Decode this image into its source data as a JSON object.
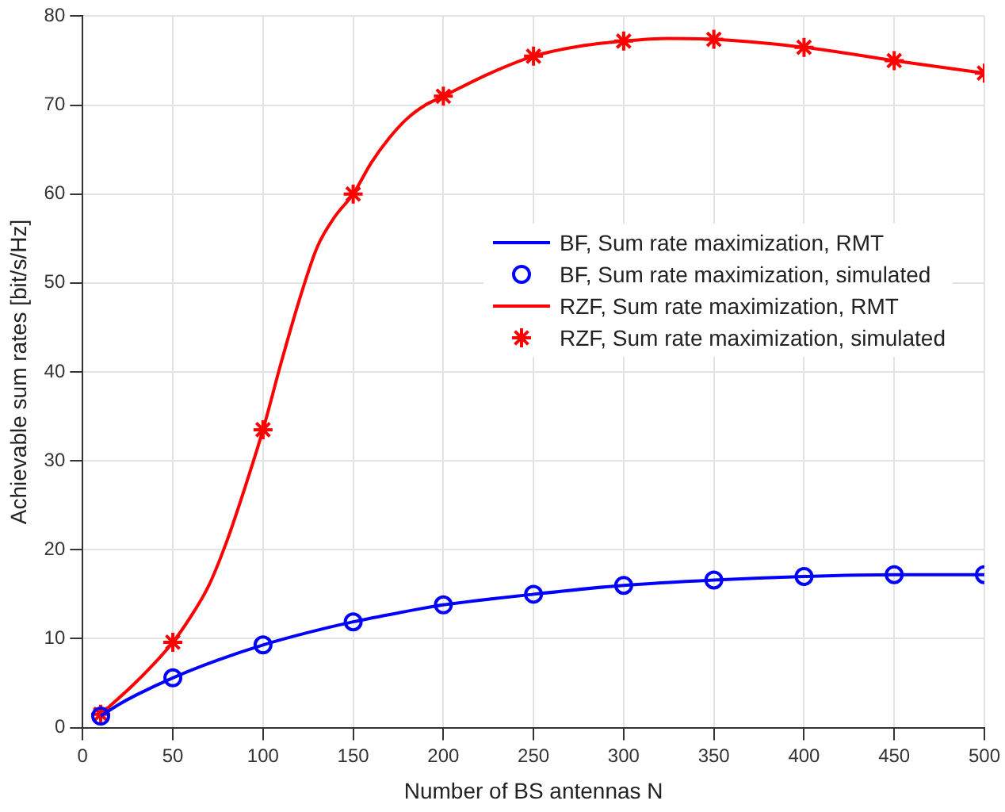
{
  "chart_data": {
    "type": "line",
    "xlabel": "Number of BS antennas N",
    "ylabel": "Achievable sum rates [bit/s/Hz]",
    "xlim": [
      0,
      500
    ],
    "xticks": [
      0,
      50,
      100,
      150,
      200,
      250,
      300,
      350,
      400,
      450,
      500
    ],
    "ylim": [
      0,
      80
    ],
    "yticks": [
      0,
      10,
      20,
      30,
      40,
      50,
      60,
      70,
      80
    ],
    "grid": true,
    "legend": "center right",
    "series": [
      {
        "name": "BF, Sum rate maximization, RMT",
        "type": "line",
        "marker": "none",
        "color": "#0000ff",
        "x": [
          10,
          20,
          30,
          50,
          75,
          100,
          125,
          150,
          175,
          200,
          250,
          300,
          350,
          400,
          450,
          500
        ],
        "values": [
          1.3,
          2.6,
          3.7,
          5.6,
          7.6,
          9.3,
          10.7,
          11.9,
          12.9,
          13.8,
          15.0,
          16.0,
          16.6,
          17.0,
          17.2,
          17.2
        ]
      },
      {
        "name": "BF, Sum rate maximization, simulated",
        "type": "scatter",
        "marker": "circle",
        "color": "#0000ff",
        "x": [
          10,
          50,
          100,
          150,
          200,
          250,
          300,
          350,
          400,
          450,
          500
        ],
        "values": [
          1.3,
          5.6,
          9.3,
          11.9,
          13.8,
          15.0,
          16.0,
          16.6,
          17.0,
          17.2,
          17.2
        ]
      },
      {
        "name": "RZF, Sum rate maximization, RMT",
        "type": "line",
        "marker": "none",
        "color": "#ff0000",
        "x": [
          10,
          30,
          50,
          60,
          70,
          80,
          90,
          100,
          110,
          120,
          130,
          140,
          150,
          160,
          170,
          180,
          190,
          200,
          225,
          250,
          275,
          300,
          325,
          350,
          400,
          450,
          500
        ],
        "values": [
          1.5,
          5.2,
          9.6,
          12.5,
          16,
          21,
          27,
          33.5,
          41,
          48,
          54,
          57.5,
          60,
          63.5,
          66.3,
          68.5,
          70,
          71,
          73.5,
          75.5,
          76.6,
          77.2,
          77.5,
          77.4,
          76.5,
          75.0,
          73.6
        ]
      },
      {
        "name": "RZF, Sum rate maximization, simulated",
        "type": "scatter",
        "marker": "cross",
        "color": "#ff0000",
        "x": [
          10,
          50,
          100,
          150,
          200,
          250,
          300,
          350,
          400,
          450,
          500
        ],
        "values": [
          1.5,
          9.6,
          33.5,
          60,
          71,
          75.5,
          77.2,
          77.4,
          76.5,
          75.0,
          73.6
        ]
      }
    ]
  }
}
